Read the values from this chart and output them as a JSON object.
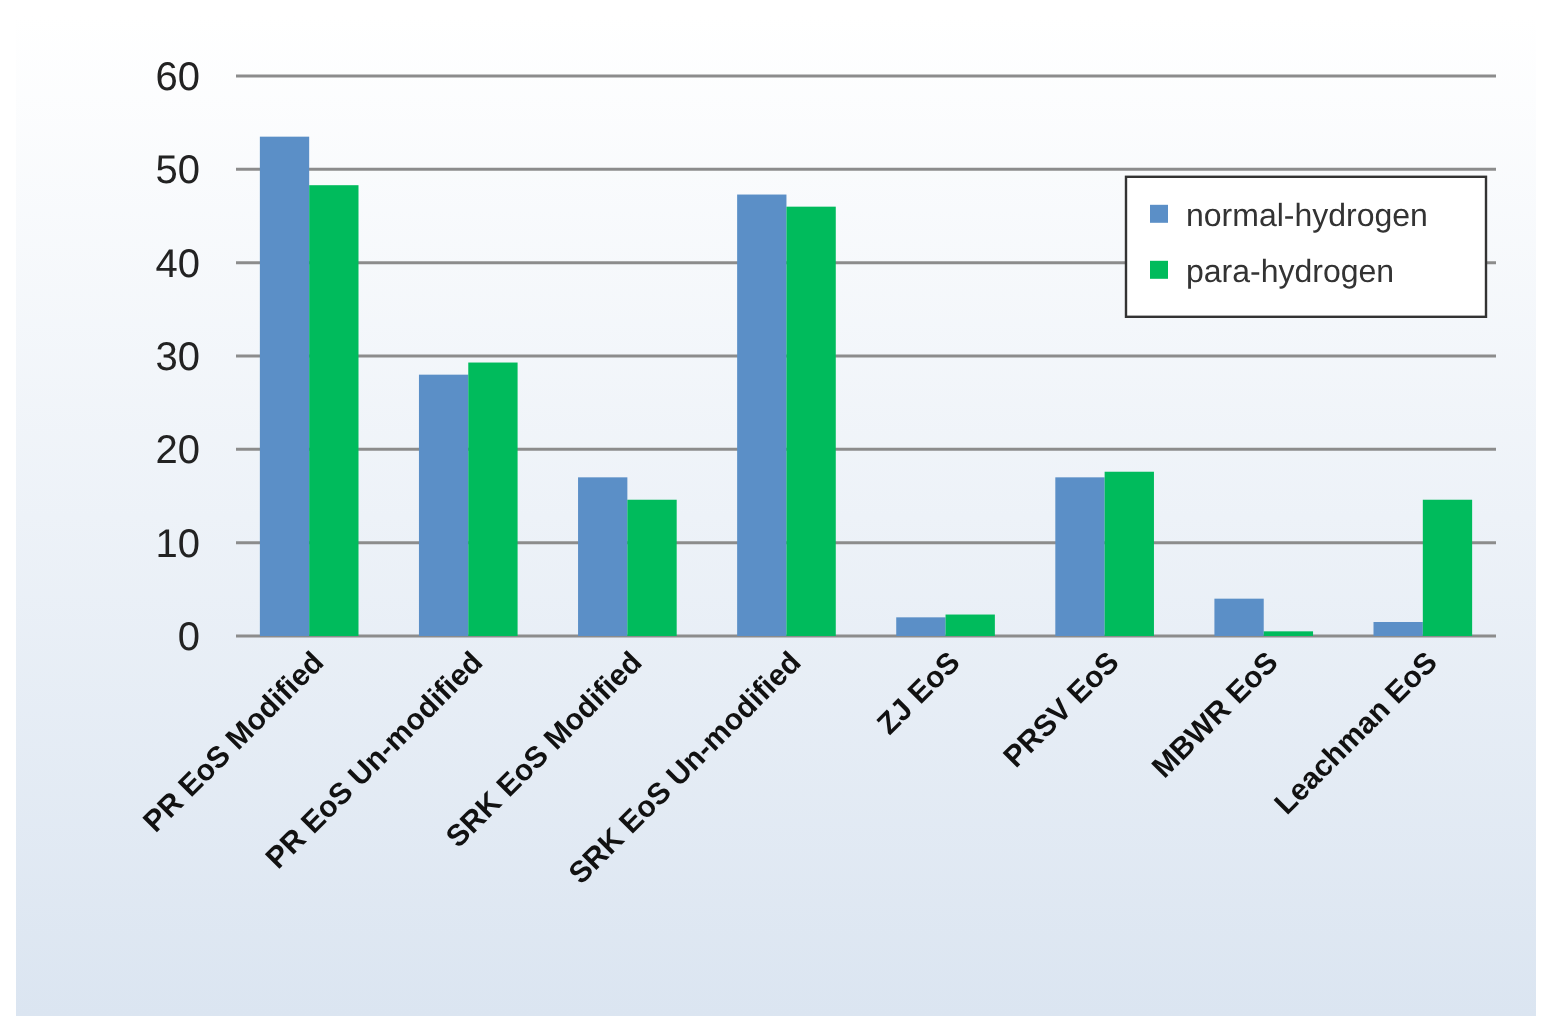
{
  "chart_data": {
    "type": "bar",
    "categories": [
      "PR EoS Modified",
      "PR EoS Un-modified",
      "SRK EoS Modified",
      "SRK EoS Un-modified",
      "ZJ EoS",
      "PRSV EoS",
      "MBWR EoS",
      "Leachman EoS"
    ],
    "series": [
      {
        "name": "normal-hydrogen",
        "color": "#5b8fc7",
        "values": [
          53.5,
          28,
          17,
          47.3,
          2,
          17,
          4,
          1.5
        ]
      },
      {
        "name": "para-hydrogen",
        "color": "#00bb5c",
        "values": [
          48.3,
          29.3,
          14.6,
          46,
          2.3,
          17.6,
          0.5,
          14.6
        ]
      }
    ],
    "ylim": [
      0,
      60
    ],
    "yticks": [
      0,
      10,
      20,
      30,
      40,
      50,
      60
    ],
    "grid": "y",
    "legend": "top right"
  }
}
